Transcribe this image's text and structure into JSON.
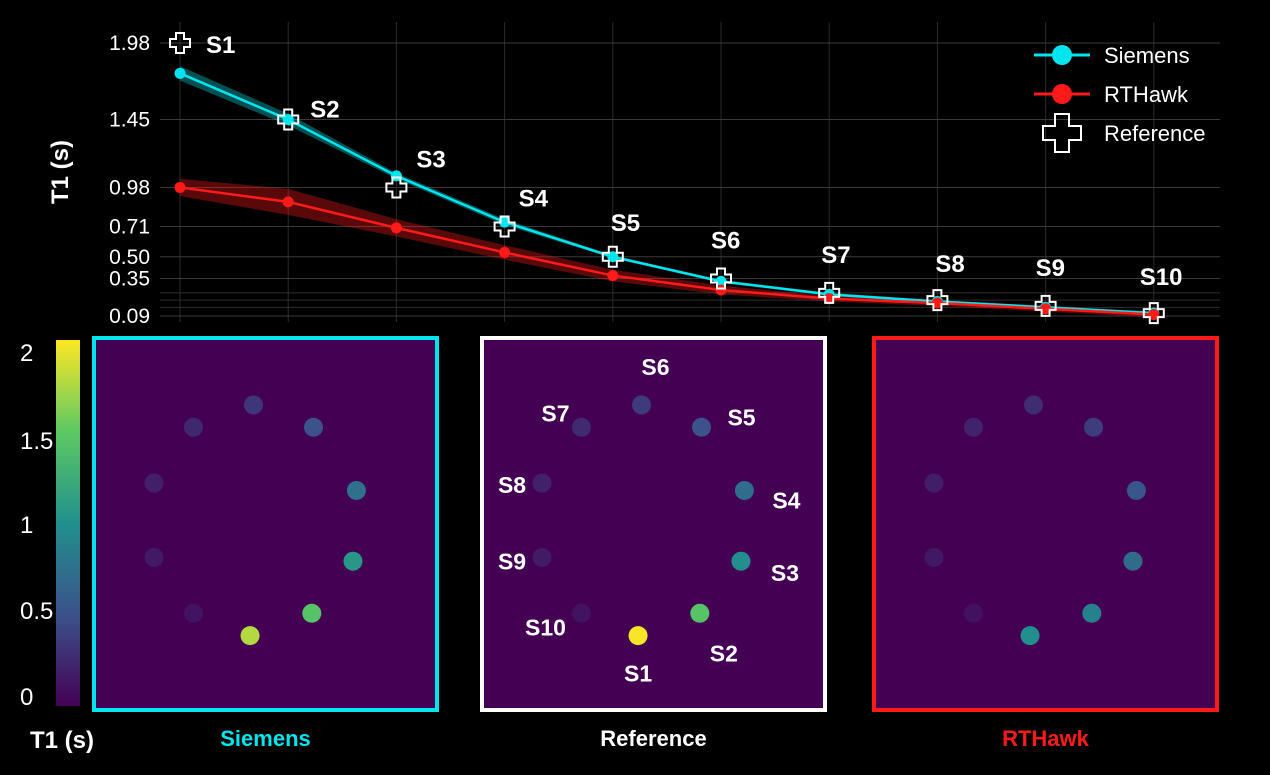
{
  "chart_data": {
    "type": "line",
    "ylabel": "T1 (s)",
    "y_ticks": [
      "1.98",
      "1.45",
      "0.98",
      "0.71",
      "0.50",
      "0.35",
      "0.09"
    ],
    "ylim": [
      0,
      2.0
    ],
    "grid": true,
    "legend_position": "top-right",
    "categories": [
      "S1",
      "S2",
      "S3",
      "S4",
      "S5",
      "S6",
      "S7",
      "S8",
      "S9",
      "S10"
    ],
    "series": [
      {
        "name": "Siemens",
        "color": "#00e5ee",
        "values": [
          1.77,
          1.45,
          1.06,
          0.74,
          0.5,
          0.33,
          0.24,
          0.19,
          0.15,
          0.11
        ],
        "band": [
          0.05,
          0.04,
          0.02,
          0.02,
          0.01,
          0.01,
          0.01,
          0.01,
          0.01,
          0.01
        ]
      },
      {
        "name": "RTHawk",
        "color": "#ff1a1a",
        "values": [
          0.98,
          0.88,
          0.7,
          0.53,
          0.37,
          0.27,
          0.21,
          0.18,
          0.14,
          0.1
        ],
        "band": [
          0.06,
          0.09,
          0.06,
          0.05,
          0.04,
          0.03,
          0.02,
          0.02,
          0.02,
          0.02
        ]
      },
      {
        "name": "Reference",
        "color": "#ffffff",
        "values": [
          1.98,
          1.45,
          0.98,
          0.71,
          0.5,
          0.35,
          0.25,
          0.2,
          0.16,
          0.11
        ]
      }
    ]
  },
  "colorbar": {
    "label": "T1 (s)",
    "ticks": [
      "2",
      "1.5",
      "1",
      "0.5",
      "0"
    ]
  },
  "panels": [
    {
      "title": "Siemens",
      "color": "#00e5ee",
      "t1": [
        1.77,
        1.45,
        1.06,
        0.74,
        0.5,
        0.33,
        0.24,
        0.19,
        0.15,
        0.11
      ]
    },
    {
      "title": "Reference",
      "color": "#ffffff",
      "t1": [
        1.98,
        1.45,
        0.98,
        0.71,
        0.5,
        0.35,
        0.25,
        0.2,
        0.16,
        0.11
      ]
    },
    {
      "title": "RTHawk",
      "color": "#ff1a1a",
      "t1": [
        0.98,
        0.88,
        0.7,
        0.53,
        0.37,
        0.27,
        0.21,
        0.18,
        0.14,
        0.1
      ]
    }
  ]
}
